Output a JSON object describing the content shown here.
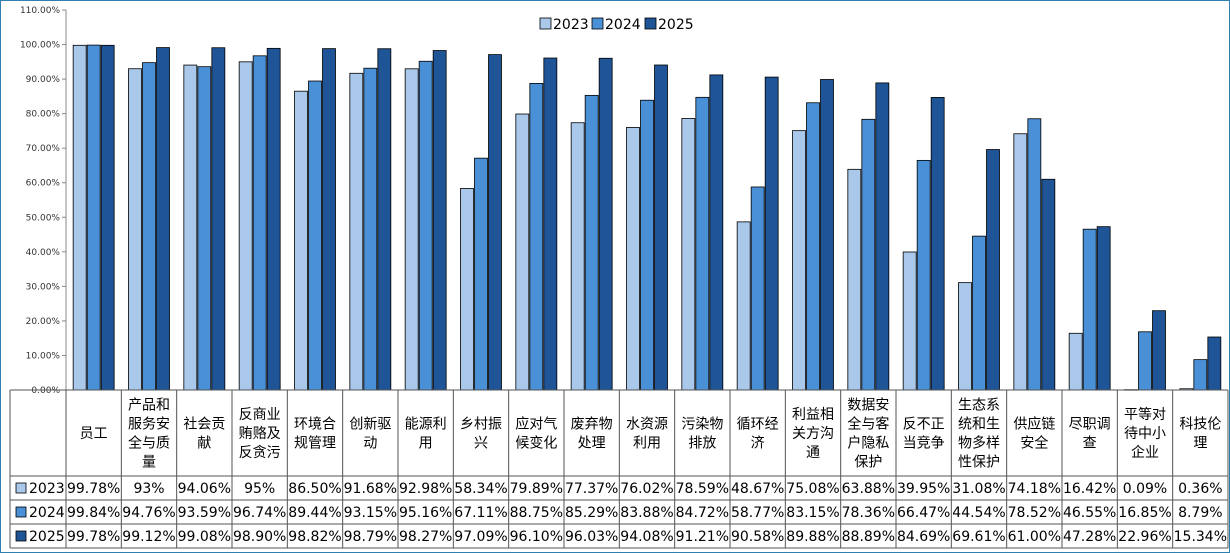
{
  "chart_data": {
    "type": "bar",
    "categories": [
      [
        "员工"
      ],
      [
        "产品和",
        "服务安",
        "全与质",
        "量"
      ],
      [
        "社会贡",
        "献"
      ],
      [
        "反商业",
        "贿赂及",
        "反贪污"
      ],
      [
        "环境合",
        "规管理"
      ],
      [
        "创新驱",
        "动"
      ],
      [
        "能源利",
        "用"
      ],
      [
        "乡村振",
        "兴"
      ],
      [
        "应对气",
        "候变化"
      ],
      [
        "废弃物",
        "处理"
      ],
      [
        "水资源",
        "利用"
      ],
      [
        "污染物",
        "排放"
      ],
      [
        "循环经",
        "济"
      ],
      [
        "利益相",
        "关方沟",
        "通"
      ],
      [
        "数据安",
        "全与客",
        "户隐私",
        "保护"
      ],
      [
        "反不正",
        "当竞争"
      ],
      [
        "生态系",
        "统和生",
        "物多样",
        "性保护"
      ],
      [
        "供应链",
        "安全"
      ],
      [
        "尽职调",
        "查"
      ],
      [
        "平等对",
        "待中小",
        "企业"
      ],
      [
        "科技伦",
        "理"
      ]
    ],
    "series": [
      {
        "name": "2023",
        "color": "#a9c8ea",
        "values": [
          99.78,
          93,
          94.06,
          95,
          86.5,
          91.68,
          92.98,
          58.34,
          79.89,
          77.37,
          76.02,
          78.59,
          48.67,
          75.08,
          63.88,
          39.95,
          31.08,
          74.18,
          16.42,
          0.09,
          0.36
        ],
        "labels": [
          "99.78%",
          "93%",
          "94.06%",
          "95%",
          "86.50%",
          "91.68%",
          "92.98%",
          "58.34%",
          "79.89%",
          "77.37%",
          "76.02%",
          "78.59%",
          "48.67%",
          "75.08%",
          "63.88%",
          "39.95%",
          "31.08%",
          "74.18%",
          "16.42%",
          "0.09%",
          "0.36%"
        ]
      },
      {
        "name": "2024",
        "color": "#4a90d6",
        "values": [
          99.84,
          94.76,
          93.59,
          96.74,
          89.44,
          93.15,
          95.16,
          67.11,
          88.75,
          85.29,
          83.88,
          84.72,
          58.77,
          83.15,
          78.36,
          66.47,
          44.54,
          78.52,
          46.55,
          16.85,
          8.79
        ],
        "labels": [
          "99.84%",
          "94.76%",
          "93.59%",
          "96.74%",
          "89.44%",
          "93.15%",
          "95.16%",
          "67.11%",
          "88.75%",
          "85.29%",
          "83.88%",
          "84.72%",
          "58.77%",
          "83.15%",
          "78.36%",
          "66.47%",
          "44.54%",
          "78.52%",
          "46.55%",
          "16.85%",
          "8.79%"
        ]
      },
      {
        "name": "2025",
        "color": "#1f5596",
        "values": [
          99.78,
          99.12,
          99.08,
          98.9,
          98.82,
          98.79,
          98.27,
          97.09,
          96.1,
          96.03,
          94.08,
          91.21,
          90.58,
          89.88,
          88.89,
          84.69,
          69.61,
          61,
          47.28,
          22.96,
          15.34
        ],
        "labels": [
          "99.78%",
          "99.12%",
          "99.08%",
          "98.90%",
          "98.82%",
          "98.79%",
          "98.27%",
          "97.09%",
          "96.10%",
          "96.03%",
          "94.08%",
          "91.21%",
          "90.58%",
          "89.88%",
          "88.89%",
          "84.69%",
          "69.61%",
          "61.00%",
          "47.28%",
          "22.96%",
          "15.34%"
        ]
      }
    ],
    "yticks": [
      "0.00%",
      "10.00%",
      "20.00%",
      "30.00%",
      "40.00%",
      "50.00%",
      "60.00%",
      "70.00%",
      "80.00%",
      "90.00%",
      "100.00%",
      "110.00%"
    ],
    "ylim": [
      0,
      110
    ],
    "grid": false,
    "legend_position": "top-center",
    "has_data_table": true
  }
}
